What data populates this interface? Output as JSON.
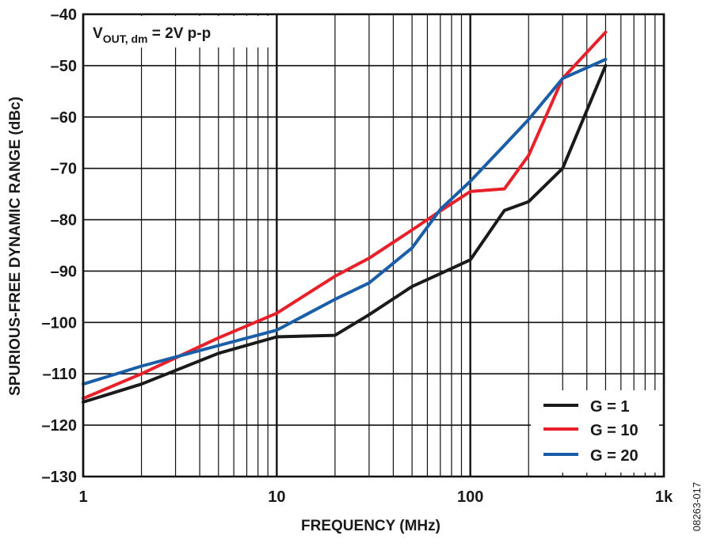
{
  "figure_id": "08263-017",
  "chart_data": {
    "type": "line",
    "xlabel": "FREQUENCY (MHz)",
    "ylabel": "SPURIOUS-FREE DYNAMIC RANGE (dBc)",
    "x_scale": "log",
    "xlim": [
      1,
      1000
    ],
    "ylim": [
      -130,
      -40
    ],
    "x_ticks": [
      1,
      10,
      100,
      1000
    ],
    "x_tick_labels": [
      "1",
      "10",
      "100",
      "1k"
    ],
    "y_ticks": [
      -130,
      -120,
      -110,
      -100,
      -90,
      -80,
      -70,
      -60,
      -50,
      -40
    ],
    "y_tick_labels": [
      "–130",
      "–120",
      "–110",
      "–100",
      "–90",
      "–80",
      "–70",
      "–60",
      "–50",
      "–40"
    ],
    "grid": true,
    "legend_position": "bottom-right",
    "annotation": {
      "main": "V",
      "subscript": "OUT, dm",
      "rest": " = 2V p-p"
    },
    "series": [
      {
        "name": "G = 1",
        "color": "#1a1a1a",
        "x": [
          1,
          2,
          5,
          10,
          20,
          30,
          50,
          70,
          100,
          150,
          200,
          300,
          500
        ],
        "y": [
          -115.5,
          -112,
          -106,
          -102.8,
          -102.5,
          -98.5,
          -93,
          -90.5,
          -87.8,
          -78.2,
          -76.5,
          -70,
          -50
        ]
      },
      {
        "name": "G = 10",
        "color": "#e8202a",
        "x": [
          1,
          2,
          5,
          10,
          20,
          30,
          50,
          70,
          100,
          150,
          200,
          300,
          500
        ],
        "y": [
          -114.8,
          -110,
          -103,
          -98.2,
          -91,
          -87.5,
          -82,
          -78.3,
          -74.5,
          -74,
          -67.5,
          -52.5,
          -43.5
        ]
      },
      {
        "name": "G = 20",
        "color": "#1b5ea8",
        "x": [
          1,
          2,
          5,
          10,
          20,
          30,
          50,
          70,
          100,
          150,
          200,
          300,
          500
        ],
        "y": [
          -112,
          -108.5,
          -104.5,
          -101.5,
          -95.5,
          -92.3,
          -85.5,
          -78,
          -72.5,
          -65.5,
          -60.5,
          -52.5,
          -48.8
        ]
      }
    ]
  }
}
